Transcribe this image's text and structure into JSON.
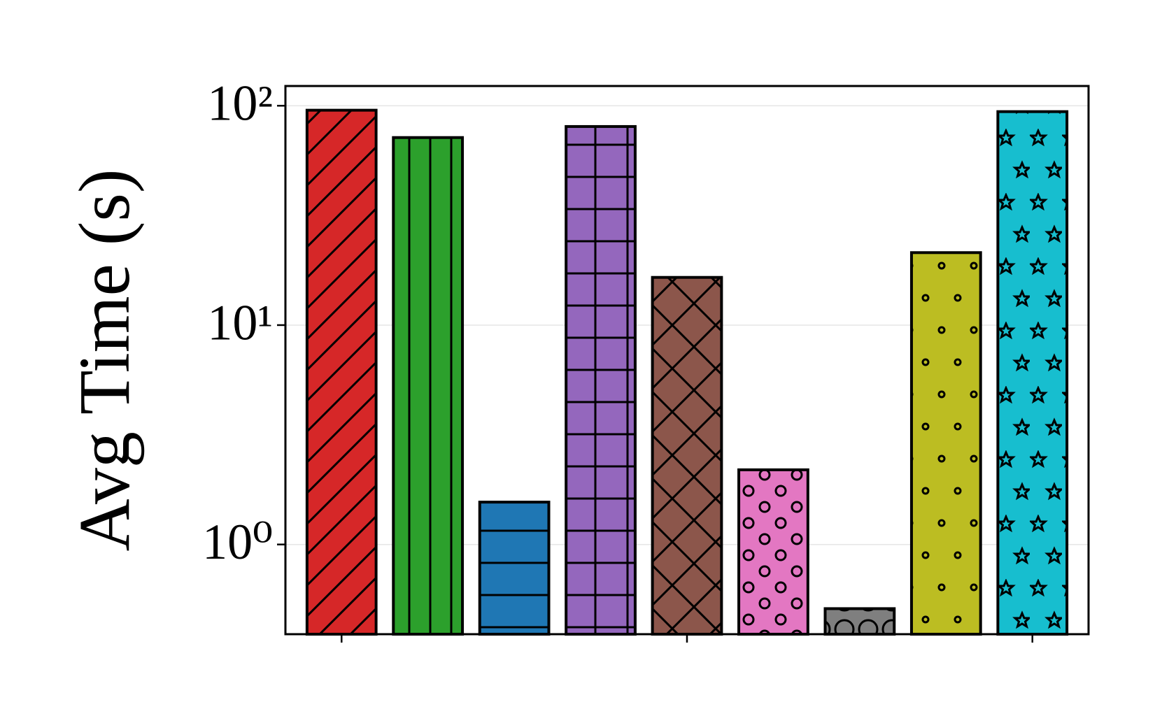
{
  "chart_data": {
    "type": "bar",
    "y_label": "Avg Time (s)",
    "categories": [
      null,
      null,
      null,
      null,
      null,
      null,
      null,
      null,
      null
    ],
    "values": [
      95.4,
      71.6,
      1.56,
      80.4,
      16.5,
      2.19,
      0.51,
      21.4,
      94.0
    ],
    "colors": [
      "#d62728",
      "#2ca02c",
      "#1f77b4",
      "#9467bd",
      "#8c564b",
      "#e377c2",
      "#7f7f7f",
      "#bcbd22",
      "#17becf"
    ],
    "hatches": [
      "/",
      "|",
      "-",
      "+",
      "x",
      "o",
      "O",
      ".",
      "*"
    ],
    "yscale": "log",
    "ylim": [
      0.39,
      123
    ],
    "yticks": [
      {
        "value": 1,
        "label": "10⁰"
      },
      {
        "value": 10,
        "label": "10¹"
      },
      {
        "value": 100,
        "label": "10²"
      }
    ],
    "grid": true
  }
}
